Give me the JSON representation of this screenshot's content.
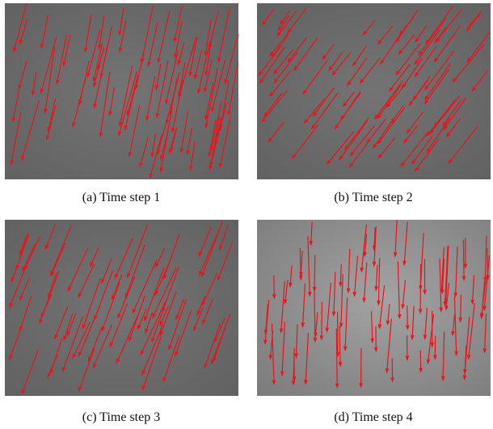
{
  "panels": [
    {
      "caption": "(a) Time step 1"
    },
    {
      "caption": "(b) Time step 2"
    },
    {
      "caption": "(c) Time step 3"
    },
    {
      "caption": "(d) Time step 4"
    }
  ]
}
